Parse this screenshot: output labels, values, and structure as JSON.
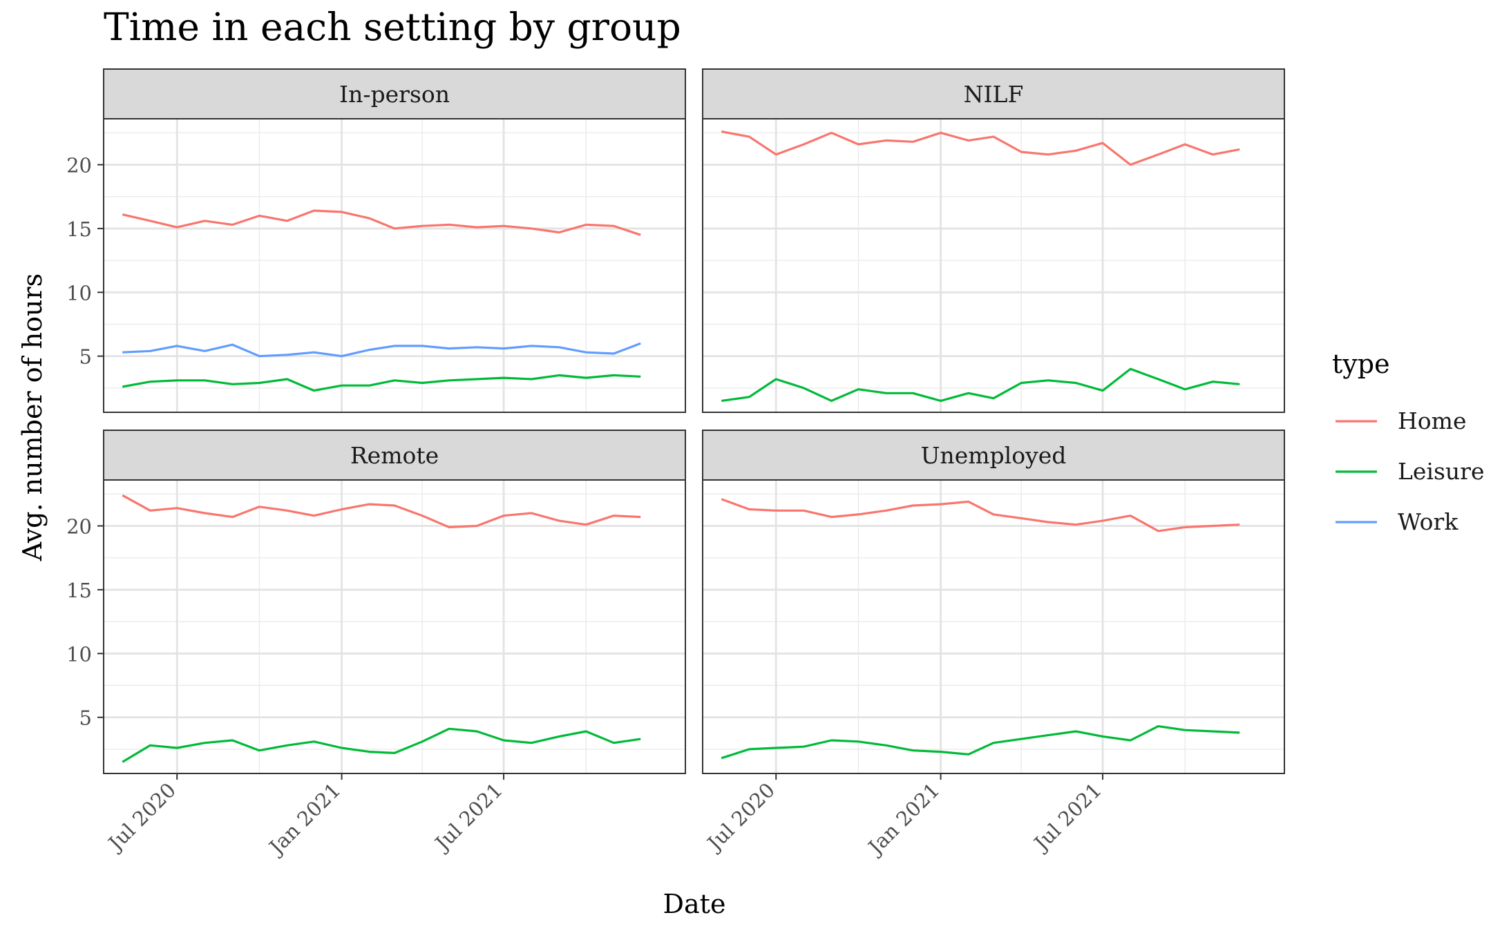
{
  "chart_data": {
    "type": "line",
    "title": "Time in each setting by group",
    "xlabel": "Date",
    "ylabel": "Avg. number of hours",
    "legend": {
      "title": "type",
      "placement": "right",
      "entries": [
        {
          "name": "Home",
          "color": "#F8766D"
        },
        {
          "name": "Leisure",
          "color": "#00BA38"
        },
        {
          "name": "Work",
          "color": "#619CFF"
        }
      ]
    },
    "x_ticks": [
      {
        "label": "Jul 2020",
        "date": "2020-07-01"
      },
      {
        "label": "Jan 2021",
        "date": "2021-01-01"
      },
      {
        "label": "Jul 2021",
        "date": "2021-07-01"
      }
    ],
    "x_minor_ticks": [
      "2020-04-01",
      "2020-10-01",
      "2021-04-01",
      "2021-10-01"
    ],
    "xlim": [
      "2020-04-10",
      "2022-01-20"
    ],
    "y_ticks": [
      5,
      10,
      15,
      20
    ],
    "ylim": [
      0.6,
      23.6
    ],
    "grid": true,
    "dates": [
      "2020-05-01",
      "2020-06-01",
      "2020-07-01",
      "2020-08-01",
      "2020-09-01",
      "2020-10-01",
      "2020-11-01",
      "2020-12-01",
      "2021-01-01",
      "2021-02-01",
      "2021-03-01",
      "2021-04-01",
      "2021-05-01",
      "2021-06-01",
      "2021-07-01",
      "2021-08-01",
      "2021-09-01",
      "2021-10-01",
      "2021-11-01",
      "2021-12-01"
    ],
    "panels": [
      {
        "strip": "In-person",
        "series": [
          {
            "name": "Home",
            "values": [
              16.1,
              15.6,
              15.1,
              15.6,
              15.3,
              16.0,
              15.6,
              16.4,
              16.3,
              15.8,
              15.0,
              15.2,
              15.3,
              15.1,
              15.2,
              15.0,
              14.7,
              15.3,
              15.2,
              14.5
            ]
          },
          {
            "name": "Leisure",
            "values": [
              2.6,
              3.0,
              3.1,
              3.1,
              2.8,
              2.9,
              3.2,
              2.3,
              2.7,
              2.7,
              3.1,
              2.9,
              3.1,
              3.2,
              3.3,
              3.2,
              3.5,
              3.3,
              3.5,
              3.4
            ]
          },
          {
            "name": "Work",
            "values": [
              5.3,
              5.4,
              5.8,
              5.4,
              5.9,
              5.0,
              5.1,
              5.3,
              5.0,
              5.5,
              5.8,
              5.8,
              5.6,
              5.7,
              5.6,
              5.8,
              5.7,
              5.3,
              5.2,
              6.0
            ]
          }
        ]
      },
      {
        "strip": "NILF",
        "series": [
          {
            "name": "Home",
            "values": [
              22.6,
              22.2,
              20.8,
              21.6,
              22.5,
              21.6,
              21.9,
              21.8,
              22.5,
              21.9,
              22.2,
              21.0,
              20.8,
              21.1,
              21.7,
              20.0,
              20.8,
              21.6,
              20.8,
              21.2
            ]
          },
          {
            "name": "Leisure",
            "values": [
              1.5,
              1.8,
              3.2,
              2.5,
              1.5,
              2.4,
              2.1,
              2.1,
              1.5,
              2.1,
              1.7,
              2.9,
              3.1,
              2.9,
              2.3,
              4.0,
              3.2,
              2.4,
              3.0,
              2.8
            ]
          }
        ]
      },
      {
        "strip": "Remote",
        "series": [
          {
            "name": "Home",
            "values": [
              22.4,
              21.2,
              21.4,
              21.0,
              20.7,
              21.5,
              21.2,
              20.8,
              21.3,
              21.7,
              21.6,
              20.8,
              19.9,
              20.0,
              20.8,
              21.0,
              20.4,
              20.1,
              20.8,
              20.7
            ]
          },
          {
            "name": "Leisure",
            "values": [
              1.5,
              2.8,
              2.6,
              3.0,
              3.2,
              2.4,
              2.8,
              3.1,
              2.6,
              2.3,
              2.2,
              3.1,
              4.1,
              3.9,
              3.2,
              3.0,
              3.5,
              3.9,
              3.0,
              3.3
            ]
          }
        ]
      },
      {
        "strip": "Unemployed",
        "series": [
          {
            "name": "Home",
            "values": [
              22.1,
              21.3,
              21.2,
              21.2,
              20.7,
              20.9,
              21.2,
              21.6,
              21.7,
              21.9,
              20.9,
              20.6,
              20.3,
              20.1,
              20.4,
              20.8,
              19.6,
              19.9,
              20.0,
              20.1
            ]
          },
          {
            "name": "Leisure",
            "values": [
              1.8,
              2.5,
              2.6,
              2.7,
              3.2,
              3.1,
              2.8,
              2.4,
              2.3,
              2.1,
              3.0,
              3.3,
              3.6,
              3.9,
              3.5,
              3.2,
              4.3,
              4.0,
              3.9,
              3.8
            ]
          }
        ]
      }
    ]
  }
}
